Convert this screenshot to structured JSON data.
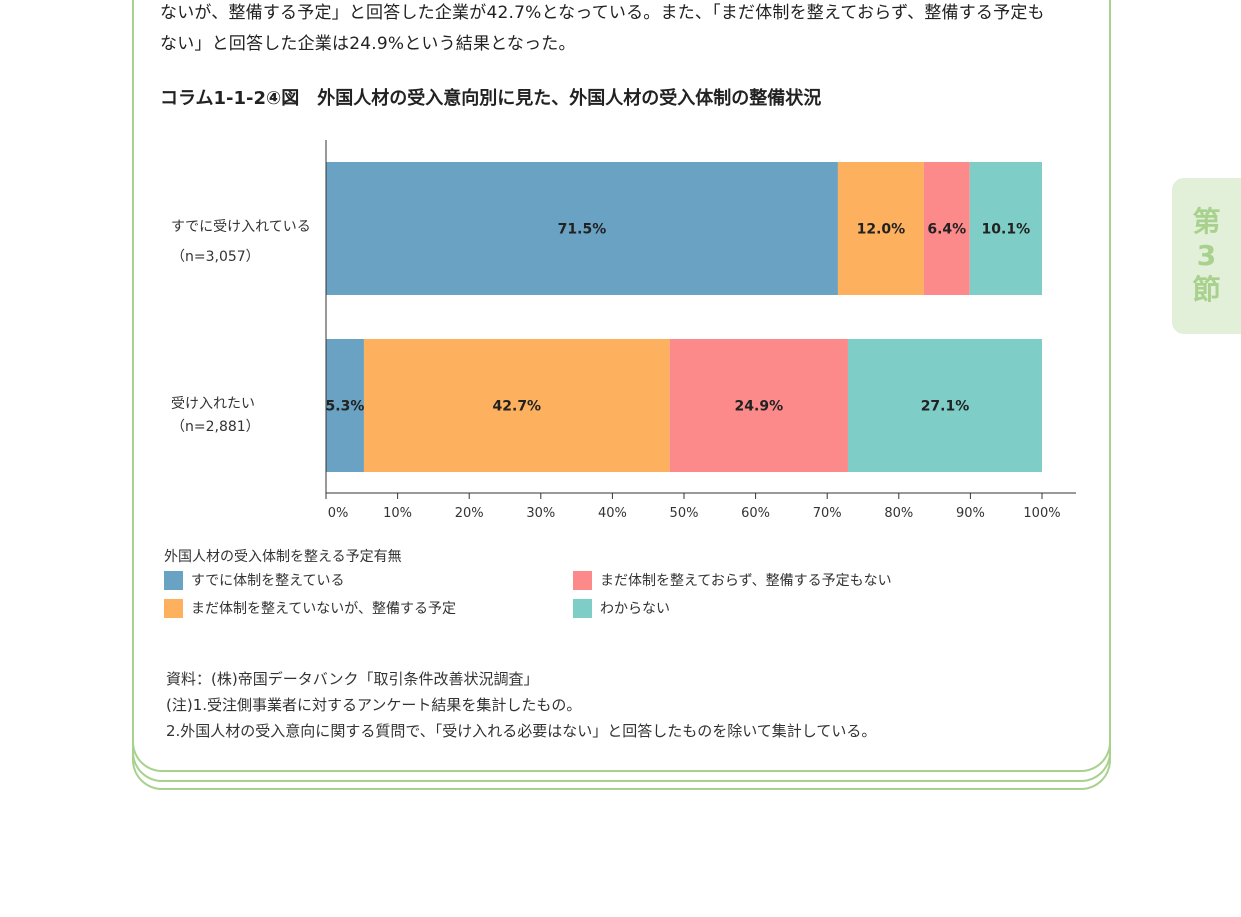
{
  "intro": {
    "line1": "ないが、整備する予定」と回答した企業が42.7%となっている。また、「まだ体制を整えておらず、整備する予定も",
    "line2": "ない」と回答した企業は24.9%という結果となった。"
  },
  "figure_title": "コラム1-1-2④図　外国人材の受入意向別に見た、外国人材の受入体制の整備状況",
  "chart_data": {
    "type": "bar",
    "orientation": "horizontal",
    "stacked": true,
    "categories": [
      {
        "label": "すでに受け入れている",
        "n": "（n=3,057）"
      },
      {
        "label": "受け入れたい",
        "n": "（n=2,881）"
      }
    ],
    "series": [
      {
        "name": "すでに体制を整えている",
        "color": "#6aa2c3",
        "values": [
          71.5,
          5.3
        ]
      },
      {
        "name": "まだ体制を整えていないが、整備する予定",
        "color": "#fdb05e",
        "values": [
          12.0,
          42.7
        ]
      },
      {
        "name": "まだ体制を整えておらず、整備する予定もない",
        "color": "#fd8a8a",
        "values": [
          6.4,
          24.9
        ]
      },
      {
        "name": "わからない",
        "color": "#7ecdc6",
        "values": [
          10.1,
          27.1
        ]
      }
    ],
    "data_labels": [
      [
        "71.5%",
        "12.0%",
        "6.4%",
        "10.1%"
      ],
      [
        "5.3%",
        "42.7%",
        "24.9%",
        "27.1%"
      ]
    ],
    "xlim": [
      0,
      100
    ],
    "xticks": [
      "0%",
      "10%",
      "20%",
      "30%",
      "40%",
      "50%",
      "60%",
      "70%",
      "80%",
      "90%",
      "100%"
    ],
    "legend_title": "外国人材の受入体制を整える予定有無",
    "legend_position": "bottom",
    "grid": false
  },
  "notes": {
    "source": "資料：(株)帝国データバンク「取引条件改善状況調査」",
    "note1": "(注)1.受注側事業者に対するアンケート結果を集計したもの。",
    "note2": "2.外国人材の受入意向に関する質問で、「受け入れる必要はない」と回答したものを除いて集計している。"
  },
  "side_tab": [
    "第",
    "3",
    "節"
  ]
}
